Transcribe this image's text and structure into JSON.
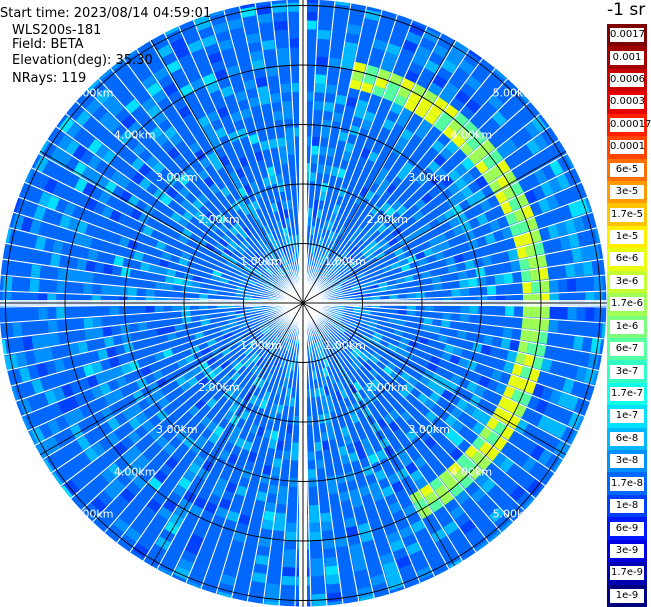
{
  "info": {
    "start_time": "Start time: 2023/08/14 04:59:01",
    "instrument": "WLS200s-181",
    "field": "Field: BETA",
    "elevation": "Elevation(deg): 35.30",
    "nrays": "NRays: 119"
  },
  "colorbar": {
    "title": "-1 sr",
    "labels": [
      "0.0017",
      "0.001",
      "0.0006",
      "0.0003",
      "0.00017",
      "0.0001",
      "6e-5",
      "3e-5",
      "1.7e-5",
      "1e-5",
      "6e-6",
      "3e-6",
      "1.7e-6",
      "1e-6",
      "6e-7",
      "3e-7",
      "1.7e-7",
      "1e-7",
      "6e-8",
      "3e-8",
      "1.7e-8",
      "1e-8",
      "6e-9",
      "3e-9",
      "1.7e-9",
      "1e-9"
    ],
    "colors": [
      "#7f0000",
      "#a00000",
      "#c80000",
      "#e60000",
      "#ff2000",
      "#ff4500",
      "#ff7000",
      "#ff9a00",
      "#ffc400",
      "#ffee00",
      "#e8ff10",
      "#c4ff33",
      "#a0ff56",
      "#7cff7a",
      "#56ffa0",
      "#33ffc4",
      "#10ffe8",
      "#00e0ff",
      "#00b8ff",
      "#0090ff",
      "#0068ff",
      "#0040ff",
      "#0018ff",
      "#0000e0",
      "#0000b0",
      "#00007f"
    ]
  },
  "chart_data": {
    "type": "heatmap",
    "projection": "polar (PPI scan)",
    "field": "BETA",
    "units": "-1 sr",
    "range_rings_km": [
      1,
      2,
      3,
      4,
      5
    ],
    "ring_labels": [
      "1.00km",
      "2.00km",
      "3.00km",
      "4.00km",
      "5.00km"
    ],
    "max_range_km": 5.1,
    "nrays": 119,
    "spoke_step_deg": 30,
    "grid": true,
    "value_scale": "log",
    "value_range": [
      1e-09,
      0.0017
    ],
    "background_level_index": 20,
    "feature": {
      "description_level_index": 10,
      "range_km": [
        3.6,
        4.0
      ],
      "azimuth_deg": [
        10,
        150
      ]
    }
  }
}
